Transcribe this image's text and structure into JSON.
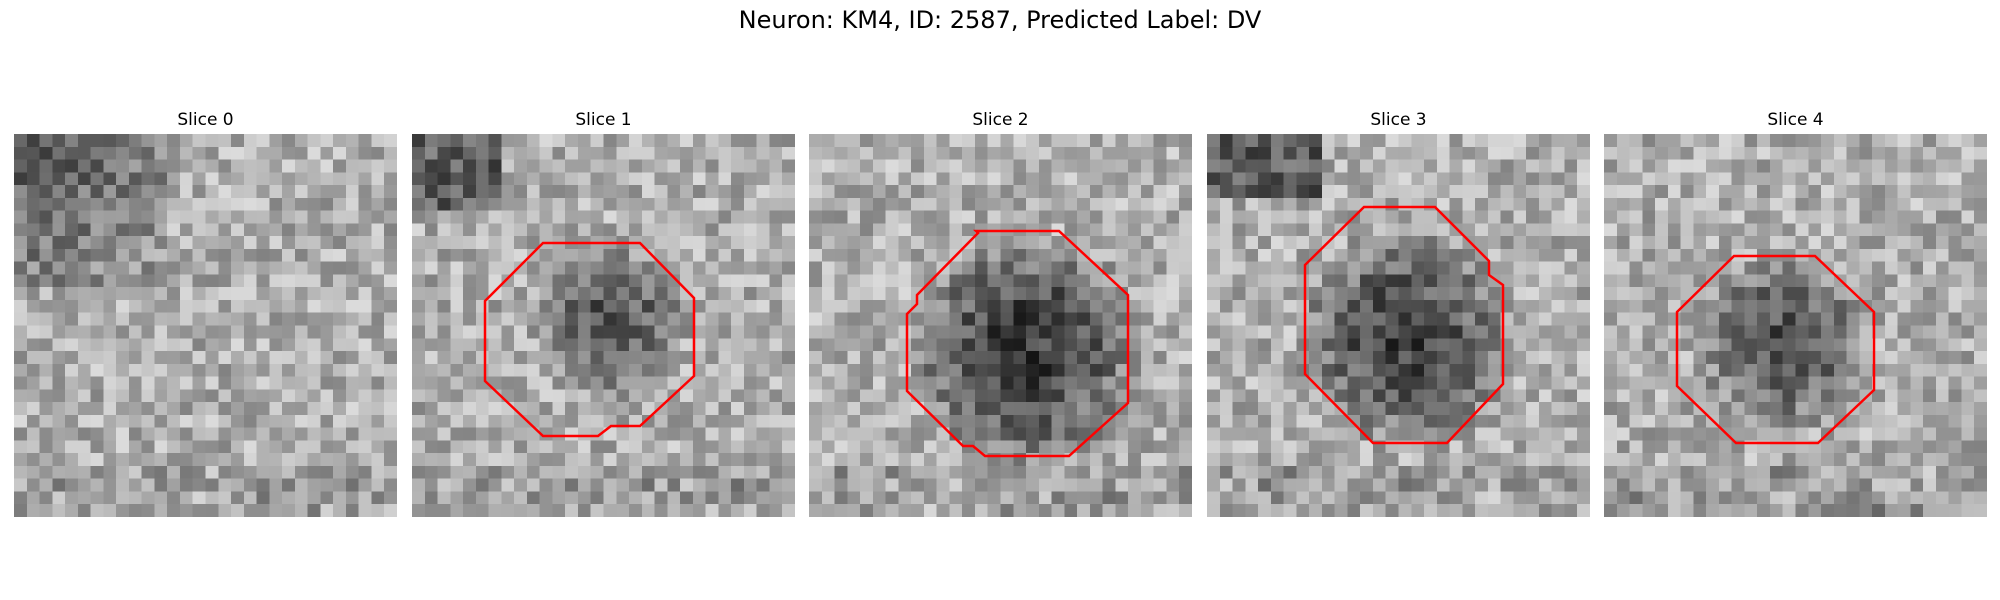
{
  "figure": {
    "title": "Neuron: KM4, ID: 2587, Predicted Label: DV",
    "contour_color": "#ff0000",
    "grid_size": 30,
    "panels": [
      {
        "title": "Slice 0",
        "has_contour": false,
        "blob": [
          0.42,
          0.52,
          0.0,
          0.0
        ]
      },
      {
        "title": "Slice 1",
        "has_contour": true,
        "blob": [
          0.5,
          0.47,
          0.18,
          0.35
        ]
      },
      {
        "title": "Slice 2",
        "has_contour": true,
        "blob": [
          0.55,
          0.55,
          0.27,
          0.45
        ]
      },
      {
        "title": "Slice 3",
        "has_contour": true,
        "blob": [
          0.5,
          0.52,
          0.25,
          0.42
        ]
      },
      {
        "title": "Slice 4",
        "has_contour": true,
        "blob": [
          0.45,
          0.53,
          0.2,
          0.38
        ]
      }
    ]
  }
}
